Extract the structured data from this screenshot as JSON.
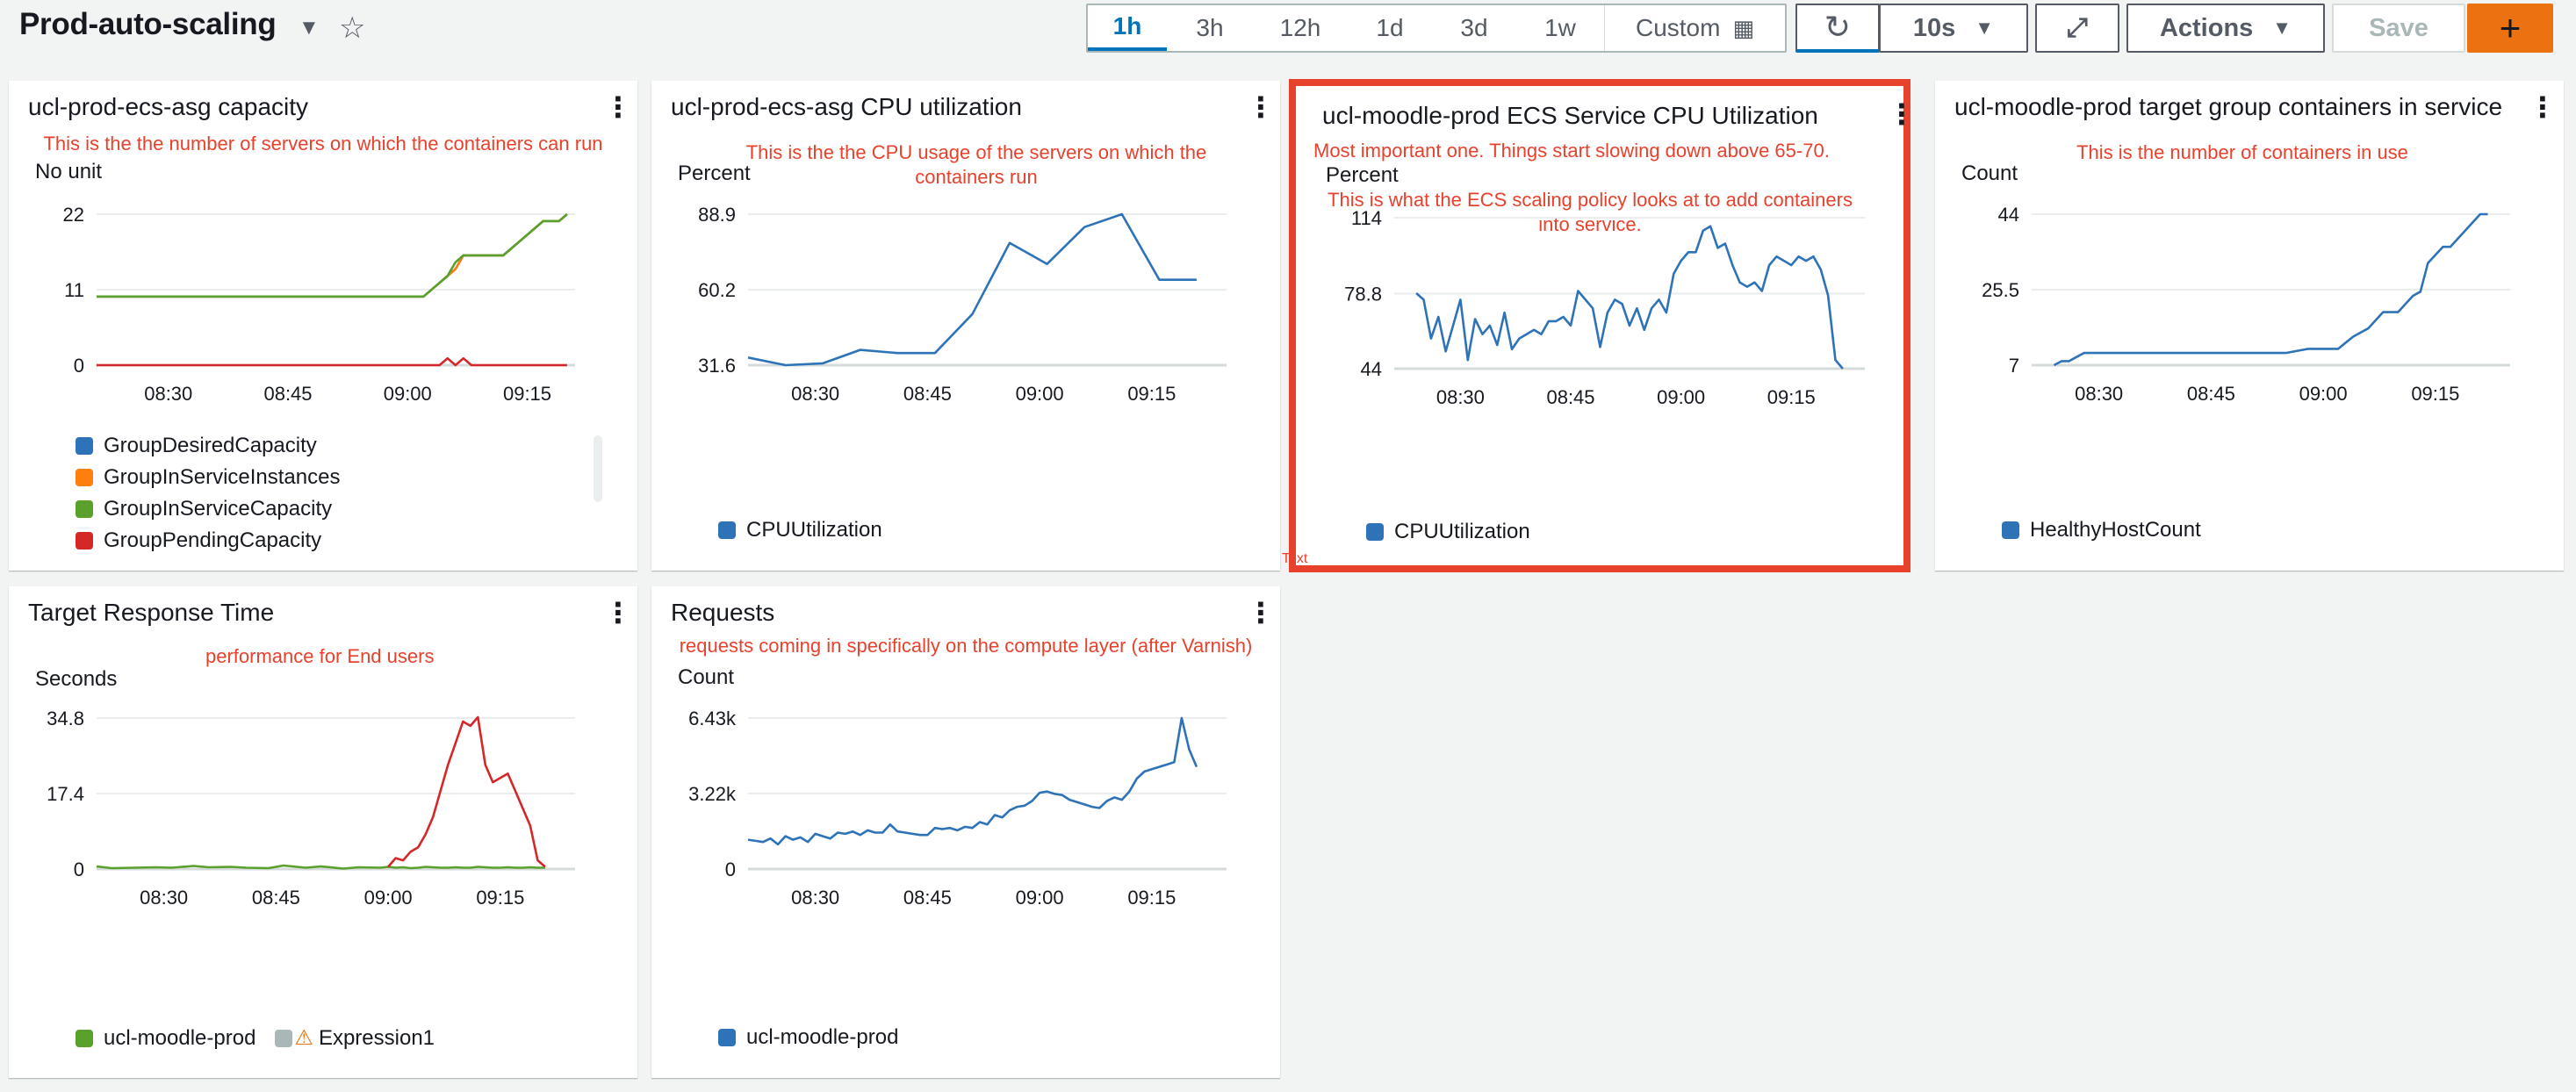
{
  "header": {
    "title": "Prod-auto-scaling",
    "time_ranges": [
      "1h",
      "3h",
      "12h",
      "1d",
      "3d",
      "1w"
    ],
    "selected_range": "1h",
    "custom_label": "Custom",
    "refresh_interval": "10s",
    "actions_label": "Actions",
    "save_label": "Save",
    "add_label": "+"
  },
  "colors": {
    "accent": "#0073bb",
    "highlight": "#e8412c",
    "primary": "#ec7211",
    "blue": "#2e73b8",
    "green": "#5aa02c",
    "red": "#d62728",
    "orange": "#ff7f0e",
    "gray": "#aab7b8"
  },
  "widgets": [
    {
      "title": "ucl-prod-ecs-asg capacity",
      "note": "This is the the number of servers on which the containers can run",
      "unit": "No unit",
      "legend": [
        {
          "label": "GroupDesiredCapacity",
          "color": "#2e73b8"
        },
        {
          "label": "GroupInServiceInstances",
          "color": "#ff7f0e"
        },
        {
          "label": "GroupInServiceCapacity",
          "color": "#5aa02c"
        },
        {
          "label": "GroupPendingCapacity",
          "color": "#d62728"
        }
      ]
    },
    {
      "title": "ucl-prod-ecs-asg CPU utilization",
      "note": "This is the the CPU usage of the servers on which the containers run",
      "unit": "Percent",
      "legend": [
        {
          "label": "CPUUtilization",
          "color": "#2e73b8"
        }
      ]
    },
    {
      "title": "ucl-moodle-prod ECS Service CPU Utilization",
      "note": "Most important one. Things start slowing down above 65-70.",
      "note2": "This is what the ECS scaling policy looks at to add containers into service.",
      "unit": "Percent",
      "legend": [
        {
          "label": "CPUUtilization",
          "color": "#2e73b8"
        }
      ]
    },
    {
      "title": "ucl-moodle-prod target group containers in service",
      "note": "This is the number of containers in use",
      "unit": "Count",
      "legend": [
        {
          "label": "HealthyHostCount",
          "color": "#2e73b8"
        }
      ]
    },
    {
      "title": "Target Response Time",
      "note": "performance for End users",
      "unit": "Seconds",
      "legend": [
        {
          "label": "ucl-moodle-prod",
          "color": "#5aa02c"
        },
        {
          "label": "Expression1",
          "color": "#aab7b8",
          "warning": true
        }
      ]
    },
    {
      "title": "Requests",
      "note": "requests coming in specifically on the compute layer (after Varnish)",
      "unit": "Count",
      "legend": [
        {
          "label": "ucl-moodle-prod",
          "color": "#2e73b8"
        }
      ]
    }
  ],
  "stray_text": "Text",
  "chart_data": [
    {
      "type": "line",
      "title": "ucl-prod-ecs-asg capacity",
      "ylabel": "No unit",
      "ylim": [
        0,
        22
      ],
      "yticks": [
        "0",
        "11",
        "22"
      ],
      "xticks": [
        "08:30",
        "08:45",
        "09:00",
        "09:15"
      ],
      "x": [
        "08:21",
        "08:30",
        "08:45",
        "09:00",
        "09:02",
        "09:04",
        "09:05",
        "09:06",
        "09:07",
        "09:08",
        "09:09",
        "09:10",
        "09:11",
        "09:12",
        "09:13",
        "09:14",
        "09:15",
        "09:16",
        "09:17",
        "09:18",
        "09:19",
        "09:20"
      ],
      "series": [
        {
          "name": "GroupDesiredCapacity",
          "color": "#2e73b8",
          "values": [
            10,
            10,
            10,
            10,
            10,
            12,
            13,
            14,
            16,
            16,
            16,
            16,
            16,
            16,
            17,
            18,
            19,
            20,
            21,
            21,
            21,
            22
          ]
        },
        {
          "name": "GroupInServiceInstances",
          "color": "#ff7f0e",
          "values": [
            10,
            10,
            10,
            10,
            10,
            12,
            13,
            14,
            16,
            16,
            16,
            16,
            16,
            16,
            17,
            18,
            19,
            20,
            21,
            21,
            21,
            22
          ]
        },
        {
          "name": "GroupInServiceCapacity",
          "color": "#5aa02c",
          "values": [
            10,
            10,
            10,
            10,
            10,
            12,
            13,
            15,
            16,
            16,
            16,
            16,
            16,
            16,
            17,
            18,
            19,
            20,
            21,
            21,
            21,
            22
          ]
        },
        {
          "name": "GroupPendingCapacity",
          "color": "#d62728",
          "values": [
            0,
            0,
            0,
            0,
            0,
            0,
            1,
            0,
            1,
            0,
            0,
            0,
            0,
            0,
            0,
            0,
            0,
            0,
            0,
            0,
            0,
            0
          ]
        }
      ]
    },
    {
      "type": "line",
      "title": "ucl-prod-ecs-asg CPU utilization",
      "ylabel": "Percent",
      "ylim": [
        31.6,
        88.9
      ],
      "yticks": [
        "31.6",
        "60.2",
        "88.9"
      ],
      "xticks": [
        "08:30",
        "08:45",
        "09:00",
        "09:15"
      ],
      "x": [
        "08:21",
        "08:26",
        "08:31",
        "08:36",
        "08:41",
        "08:46",
        "08:51",
        "08:56",
        "09:01",
        "09:06",
        "09:11",
        "09:16",
        "09:21"
      ],
      "series": [
        {
          "name": "CPUUtilization",
          "color": "#2e73b8",
          "values": [
            34.5,
            31.6,
            32.3,
            37.4,
            36.2,
            36.2,
            51,
            78,
            70,
            84,
            88.9,
            64,
            64
          ]
        }
      ]
    },
    {
      "type": "line",
      "title": "ucl-moodle-prod ECS Service CPU Utilization",
      "ylabel": "Percent",
      "ylim": [
        44,
        114
      ],
      "yticks": [
        "44",
        "78.8",
        "114"
      ],
      "xticks": [
        "08:30",
        "08:45",
        "09:00",
        "09:15"
      ],
      "x": [
        "08:24",
        "08:25",
        "08:26",
        "08:27",
        "08:28",
        "08:29",
        "08:30",
        "08:31",
        "08:32",
        "08:33",
        "08:34",
        "08:35",
        "08:36",
        "08:37",
        "08:38",
        "08:39",
        "08:40",
        "08:41",
        "08:42",
        "08:43",
        "08:44",
        "08:45",
        "08:46",
        "08:47",
        "08:48",
        "08:49",
        "08:50",
        "08:51",
        "08:52",
        "08:53",
        "08:54",
        "08:55",
        "08:56",
        "08:57",
        "08:58",
        "08:59",
        "09:00",
        "09:01",
        "09:02",
        "09:03",
        "09:04",
        "09:05",
        "09:06",
        "09:07",
        "09:08",
        "09:09",
        "09:10",
        "09:11",
        "09:12",
        "09:13",
        "09:14",
        "09:15",
        "09:16",
        "09:17",
        "09:18",
        "09:19",
        "09:20",
        "09:21",
        "09:22"
      ],
      "series": [
        {
          "name": "CPUUtilization",
          "color": "#2e73b8",
          "values": [
            79,
            76,
            58,
            68,
            52,
            64,
            76,
            48,
            67,
            60,
            64,
            55,
            70,
            53,
            58,
            60,
            62,
            60,
            66,
            66,
            68,
            64,
            80,
            76,
            72,
            54,
            70,
            76,
            74,
            64,
            72,
            62,
            72,
            76,
            70,
            88,
            94,
            98,
            98,
            108,
            110,
            100,
            102,
            92,
            84,
            82,
            84,
            80,
            92,
            96,
            94,
            92,
            96,
            94,
            96,
            90,
            78,
            48,
            44
          ]
        }
      ]
    },
    {
      "type": "line",
      "title": "ucl-moodle-prod target group containers in service",
      "ylabel": "Count",
      "ylim": [
        7,
        44
      ],
      "yticks": [
        "7",
        "25.5",
        "44"
      ],
      "xticks": [
        "08:30",
        "08:45",
        "09:00",
        "09:15"
      ],
      "x": [
        "08:24",
        "08:25",
        "08:26",
        "08:27",
        "08:28",
        "08:30",
        "08:35",
        "08:40",
        "08:45",
        "08:50",
        "08:52",
        "08:55",
        "08:58",
        "09:00",
        "09:02",
        "09:04",
        "09:06",
        "09:08",
        "09:09",
        "09:10",
        "09:11",
        "09:12",
        "09:13",
        "09:14",
        "09:15",
        "09:16",
        "09:17",
        "09:18",
        "09:19",
        "09:20",
        "09:21",
        "09:22"
      ],
      "series": [
        {
          "name": "HealthyHostCount",
          "color": "#2e73b8",
          "values": [
            7,
            8,
            8,
            9,
            10,
            10,
            10,
            10,
            10,
            10,
            10,
            10,
            11,
            11,
            11,
            14,
            16,
            20,
            20,
            20,
            22,
            24,
            25,
            32,
            34,
            36,
            36,
            38,
            40,
            42,
            44,
            44
          ]
        }
      ]
    },
    {
      "type": "line",
      "title": "Target Response Time",
      "ylabel": "Seconds",
      "ylim": [
        0,
        34.8
      ],
      "yticks": [
        "0",
        "17.4",
        "34.8"
      ],
      "xticks": [
        "08:30",
        "08:45",
        "09:00",
        "09:15"
      ],
      "x": [
        "08:21",
        "08:23",
        "08:26",
        "08:29",
        "08:31",
        "08:34",
        "08:36",
        "08:39",
        "08:41",
        "08:44",
        "08:46",
        "08:49",
        "08:51",
        "08:54",
        "08:56",
        "08:59",
        "09:00",
        "09:01",
        "09:02",
        "09:03",
        "09:04",
        "09:05",
        "09:06",
        "09:07",
        "09:08",
        "09:09",
        "09:10",
        "09:11",
        "09:12",
        "09:13",
        "09:14",
        "09:15",
        "09:16",
        "09:17",
        "09:18",
        "09:19",
        "09:20",
        "09:21"
      ],
      "series": [
        {
          "name": "ucl-moodle-prod",
          "color": "#5aa02c",
          "values": [
            0.6,
            0.2,
            0.3,
            0.4,
            0.3,
            0.7,
            0.4,
            0.5,
            0.3,
            0.2,
            0.8,
            0.3,
            0.6,
            0.1,
            0.4,
            0.3,
            0.5,
            0.3,
            0.4,
            0.2,
            0.3,
            0.5,
            0.4,
            0.3,
            0.3,
            0.4,
            0.3,
            0.3,
            0.5,
            0.4,
            0.3,
            0.3,
            0.4,
            0.3,
            0.3,
            0.4,
            0.3,
            0.3
          ]
        },
        {
          "name": "Expression1",
          "color": "#d62728",
          "values": [
            null,
            null,
            null,
            null,
            null,
            null,
            null,
            null,
            null,
            null,
            null,
            null,
            null,
            null,
            null,
            null,
            0.5,
            2.5,
            2,
            4,
            5,
            8,
            12,
            18,
            24,
            29,
            34,
            33,
            35,
            24,
            20,
            21,
            22,
            18,
            14,
            10,
            2,
            0.5
          ]
        }
      ]
    },
    {
      "type": "line",
      "title": "Requests",
      "ylabel": "Count",
      "ylim": [
        0,
        6430
      ],
      "yticks": [
        "0",
        "3.22k",
        "6.43k"
      ],
      "xticks": [
        "08:30",
        "08:45",
        "09:00",
        "09:15"
      ],
      "x": [
        "08:21",
        "08:22",
        "08:23",
        "08:24",
        "08:25",
        "08:26",
        "08:27",
        "08:28",
        "08:29",
        "08:30",
        "08:31",
        "08:32",
        "08:33",
        "08:34",
        "08:35",
        "08:36",
        "08:37",
        "08:38",
        "08:39",
        "08:40",
        "08:41",
        "08:42",
        "08:43",
        "08:44",
        "08:45",
        "08:46",
        "08:47",
        "08:48",
        "08:49",
        "08:50",
        "08:51",
        "08:52",
        "08:53",
        "08:54",
        "08:55",
        "08:56",
        "08:57",
        "08:58",
        "08:59",
        "09:00",
        "09:01",
        "09:02",
        "09:03",
        "09:04",
        "09:05",
        "09:06",
        "09:07",
        "09:08",
        "09:09",
        "09:10",
        "09:11",
        "09:12",
        "09:13",
        "09:14",
        "09:15",
        "09:16",
        "09:17",
        "09:18",
        "09:19",
        "09:20",
        "09:21"
      ],
      "series": [
        {
          "name": "ucl-moodle-prod",
          "color": "#2e73b8",
          "values": [
            1250,
            1200,
            1150,
            1300,
            1050,
            1400,
            1250,
            1350,
            1150,
            1500,
            1400,
            1300,
            1550,
            1500,
            1600,
            1450,
            1650,
            1550,
            1550,
            1900,
            1600,
            1550,
            1500,
            1450,
            1450,
            1750,
            1700,
            1750,
            1650,
            1800,
            1750,
            2000,
            1900,
            2300,
            2200,
            2500,
            2650,
            2700,
            2900,
            3250,
            3300,
            3200,
            3150,
            2950,
            2850,
            2750,
            2650,
            2600,
            2900,
            3050,
            2950,
            3300,
            3850,
            4150,
            4250,
            4350,
            4450,
            4550,
            6430,
            5100,
            4350
          ]
        }
      ]
    }
  ]
}
